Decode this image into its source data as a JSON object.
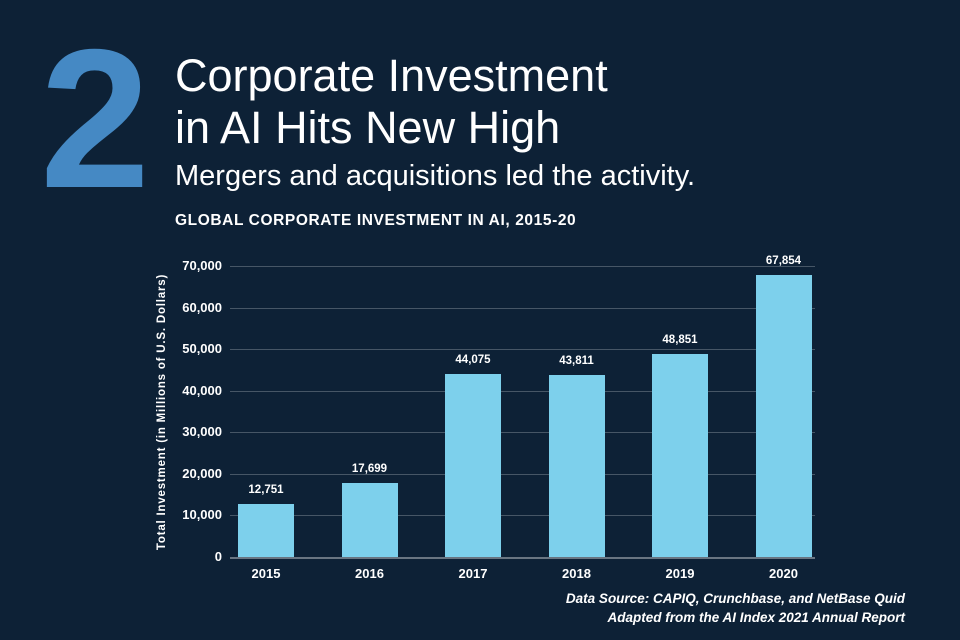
{
  "page": {
    "background_color": "#0d2136",
    "accent_blue": "#4589c4",
    "bar_color": "#7dd0ec",
    "text_color": "#ffffff"
  },
  "header": {
    "section_number": "2",
    "title_line1": "Corporate Investment",
    "title_line2": "in AI Hits New High",
    "subtitle": "Mergers and acquisitions led the activity."
  },
  "chart_data": {
    "type": "bar",
    "title": "GLOBAL CORPORATE INVESTMENT IN AI, 2015-20",
    "xlabel": "",
    "ylabel": "Total Investment (in Millions of U.S. Dollars)",
    "categories": [
      "2015",
      "2016",
      "2017",
      "2018",
      "2019",
      "2020"
    ],
    "values": [
      12751,
      17699,
      44075,
      43811,
      48851,
      67854
    ],
    "value_labels": [
      "12,751",
      "17,699",
      "44,075",
      "43,811",
      "48,851",
      "67,854"
    ],
    "ylim": [
      0,
      70000
    ],
    "ytick_step": 10000,
    "ytick_labels": [
      "0",
      "10,000",
      "20,000",
      "30,000",
      "40,000",
      "50,000",
      "60,000",
      "70,000"
    ],
    "grid": true,
    "legend": false,
    "bar_color": "#7dd0ec"
  },
  "footer": {
    "source_line1": "Data Source: CAPIQ, Crunchbase, and NetBase Quid",
    "source_line2": "Adapted from the AI Index 2021 Annual Report"
  }
}
